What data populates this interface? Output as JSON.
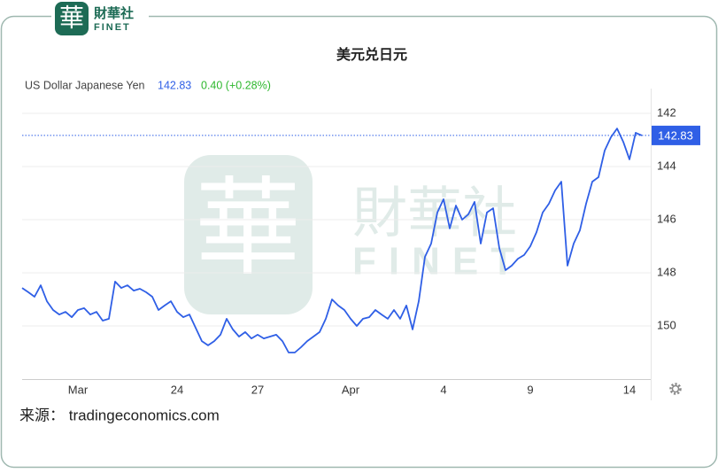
{
  "logo": {
    "mark": "華",
    "name": "財華社",
    "sub": "FINET"
  },
  "source": "来源： tradingeconomics.com",
  "chart_data": {
    "type": "line",
    "title": "美元兑日元",
    "instrument": "US Dollar Japanese Yen",
    "last_value": 142.83,
    "change": "0.40 (+0.28%)",
    "categories": [
      null,
      null,
      null,
      null,
      null,
      null,
      null,
      null,
      null,
      "Mar",
      null,
      null,
      null,
      null,
      null,
      null,
      null,
      null,
      null,
      null,
      null,
      null,
      null,
      null,
      null,
      "24",
      null,
      null,
      null,
      null,
      null,
      null,
      null,
      null,
      null,
      null,
      null,
      null,
      "27",
      null,
      null,
      null,
      null,
      null,
      null,
      null,
      null,
      null,
      null,
      null,
      null,
      null,
      null,
      "Apr",
      null,
      null,
      null,
      null,
      null,
      null,
      null,
      null,
      null,
      null,
      null,
      null,
      null,
      null,
      "4",
      null,
      null,
      null,
      null,
      null,
      null,
      null,
      null,
      null,
      null,
      null,
      null,
      null,
      "9",
      null,
      null,
      null,
      null,
      null,
      null,
      null,
      null,
      null,
      null,
      null,
      null,
      null,
      null,
      null,
      "14",
      null,
      null
    ],
    "series": [
      {
        "name": "US Dollar Japanese Yen",
        "color": "#2f5fe6",
        "values": [
          148.57,
          148.73,
          148.9,
          148.47,
          149.07,
          149.4,
          149.57,
          149.47,
          149.67,
          149.4,
          149.33,
          149.57,
          149.47,
          149.8,
          149.73,
          148.33,
          148.57,
          148.47,
          148.67,
          148.6,
          148.73,
          148.9,
          149.4,
          149.23,
          149.07,
          149.47,
          149.67,
          149.57,
          150.07,
          150.57,
          150.73,
          150.57,
          150.33,
          149.73,
          150.13,
          150.4,
          150.23,
          150.47,
          150.33,
          150.47,
          150.4,
          150.33,
          150.57,
          151,
          151,
          150.8,
          150.57,
          150.4,
          150.23,
          149.73,
          149,
          149.23,
          149.4,
          149.73,
          150,
          149.73,
          149.67,
          149.4,
          149.57,
          149.73,
          149.4,
          149.73,
          149.23,
          150.13,
          149.07,
          147.4,
          146.9,
          145.73,
          145.23,
          146.33,
          145.47,
          146,
          145.8,
          145.33,
          146.9,
          145.73,
          145.57,
          147.07,
          147.9,
          147.73,
          147.47,
          147.33,
          147,
          146.47,
          145.73,
          145.4,
          144.9,
          144.57,
          147.73,
          146.9,
          146.4,
          145.4,
          144.57,
          144.4,
          143.4,
          142.9,
          142.57,
          143.07,
          143.73,
          142.73,
          142.83
        ]
      }
    ],
    "ylim": [
      141,
      152
    ],
    "y_inverted": true,
    "yticks": [
      142,
      144,
      146,
      148,
      150
    ],
    "grid": true
  }
}
